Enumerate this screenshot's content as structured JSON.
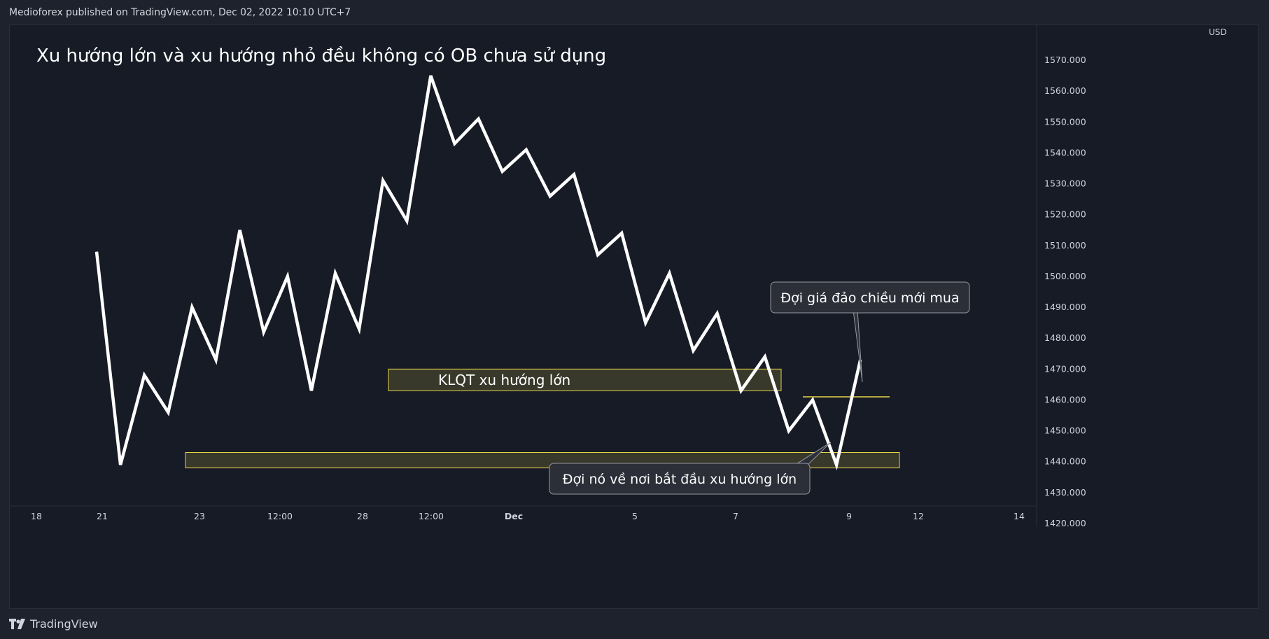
{
  "header": {
    "attribution": "Medioforex published on TradingView.com, Dec 02, 2022 10:10 UTC+7"
  },
  "footer": {
    "brand": "TradingView",
    "logo_icon": "tradingview-logo-icon"
  },
  "colors": {
    "background": "#1e222d",
    "pane": "#171b26",
    "line": "#ffffff",
    "zone_fill": "#3a3b2a",
    "zone_border": "#e8d64a",
    "axis_text": "#d1d4dc",
    "callout_bg": "#2c2f38"
  },
  "chart_data": {
    "type": "line",
    "title": "Xu hướng lớn và xu hướng nhỏ đều không có OB chưa sử dụng",
    "currency": "USD",
    "ylim": [
      1420,
      1580
    ],
    "y_ticks": [
      "1570.000",
      "1560.000",
      "1550.000",
      "1540.000",
      "1530.000",
      "1520.000",
      "1510.000",
      "1500.000",
      "1490.000",
      "1480.000",
      "1470.000",
      "1460.000",
      "1450.000",
      "1440.000",
      "1430.000",
      "1420.000"
    ],
    "x_ticks": [
      "18",
      "21",
      "23",
      "12:00",
      "28",
      "12:00",
      "Dec",
      "5",
      "7",
      "9",
      "12",
      "14"
    ],
    "grid": false,
    "legend": "none",
    "series": [
      {
        "points": [
          [
            0,
            1508
          ],
          [
            1,
            1439
          ],
          [
            2,
            1468
          ],
          [
            3,
            1456
          ],
          [
            4,
            1490
          ],
          [
            5,
            1473
          ],
          [
            6,
            1515
          ],
          [
            7,
            1482
          ],
          [
            8,
            1500
          ],
          [
            9,
            1463
          ],
          [
            10,
            1501
          ],
          [
            11,
            1483
          ],
          [
            12,
            1531
          ],
          [
            13,
            1518
          ],
          [
            14,
            1565
          ],
          [
            15,
            1543
          ],
          [
            16,
            1551
          ],
          [
            17,
            1534
          ],
          [
            18,
            1541
          ],
          [
            19,
            1526
          ],
          [
            20,
            1533
          ],
          [
            21,
            1507
          ],
          [
            22,
            1514
          ],
          [
            23,
            1485
          ],
          [
            24,
            1501
          ],
          [
            25,
            1476
          ],
          [
            26,
            1488
          ],
          [
            27,
            1463
          ],
          [
            28,
            1474
          ],
          [
            29,
            1450
          ],
          [
            30,
            1460
          ],
          [
            31,
            1439
          ],
          [
            32,
            1473
          ]
        ]
      }
    ],
    "zones": [
      {
        "label": "KLQT xu hướng lớn",
        "y_low": 1463,
        "y_high": 1470
      },
      {
        "label": "",
        "y_low": 1438,
        "y_high": 1443
      }
    ],
    "level_line": {
      "y": 1461
    },
    "annotations": [
      {
        "text": "Đợi giá đảo chiều mới mua"
      },
      {
        "text": "Đợi nó về nơi bắt đầu xu hướng lớn"
      }
    ]
  }
}
